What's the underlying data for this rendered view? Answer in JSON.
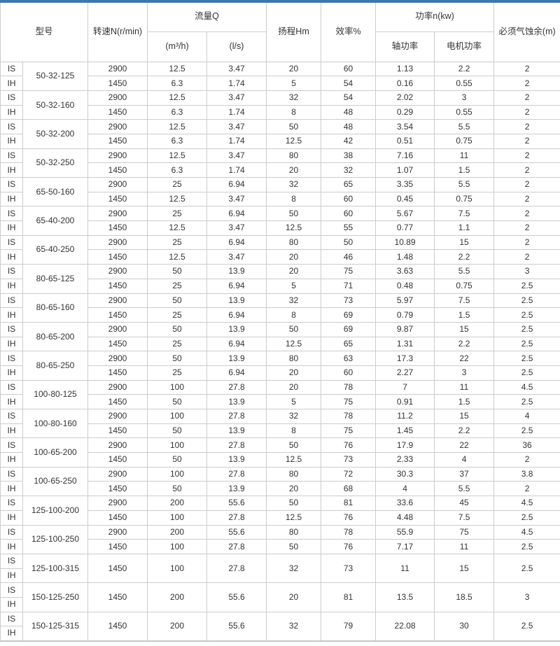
{
  "accent_color": "#3a78b4",
  "border_color": "#cccccc",
  "table": {
    "header": {
      "model": "型号",
      "speed": "转速N(r/min)",
      "flow": "流量Q",
      "flow_m3h": "(m³/h)",
      "flow_ls": "(l/s)",
      "head": "扬程Hm",
      "efficiency": "效率%",
      "power": "功率n(kw)",
      "shaft_power": "轴功率",
      "motor_power": "电机功率",
      "npsh": "必须气蚀余(m)"
    },
    "groups": [
      {
        "model": "50-32-125",
        "merged": false,
        "rows": [
          {
            "series": "IS",
            "speed": "2900",
            "flow_m3h": "12.5",
            "flow_ls": "3.47",
            "head": "20",
            "efficiency": "60",
            "shaft_power": "1.13",
            "motor_power": "2.2",
            "npsh": "2"
          },
          {
            "series": "IH",
            "speed": "1450",
            "flow_m3h": "6.3",
            "flow_ls": "1.74",
            "head": "5",
            "efficiency": "54",
            "shaft_power": "0.16",
            "motor_power": "0.55",
            "npsh": "2"
          }
        ]
      },
      {
        "model": "50-32-160",
        "merged": false,
        "rows": [
          {
            "series": "IS",
            "speed": "2900",
            "flow_m3h": "12.5",
            "flow_ls": "3.47",
            "head": "32",
            "efficiency": "54",
            "shaft_power": "2.02",
            "motor_power": "3",
            "npsh": "2"
          },
          {
            "series": "IH",
            "speed": "1450",
            "flow_m3h": "6.3",
            "flow_ls": "1.74",
            "head": "8",
            "efficiency": "48",
            "shaft_power": "0.29",
            "motor_power": "0.55",
            "npsh": "2"
          }
        ]
      },
      {
        "model": "50-32-200",
        "merged": false,
        "rows": [
          {
            "series": "IS",
            "speed": "2900",
            "flow_m3h": "12.5",
            "flow_ls": "3.47",
            "head": "50",
            "efficiency": "48",
            "shaft_power": "3.54",
            "motor_power": "5.5",
            "npsh": "2"
          },
          {
            "series": "IH",
            "speed": "1450",
            "flow_m3h": "6.3",
            "flow_ls": "1.74",
            "head": "12.5",
            "efficiency": "42",
            "shaft_power": "0.51",
            "motor_power": "0.75",
            "npsh": "2"
          }
        ]
      },
      {
        "model": "50-32-250",
        "merged": false,
        "rows": [
          {
            "series": "IS",
            "speed": "2900",
            "flow_m3h": "12.5",
            "flow_ls": "3.47",
            "head": "80",
            "efficiency": "38",
            "shaft_power": "7.16",
            "motor_power": "11",
            "npsh": "2"
          },
          {
            "series": "IH",
            "speed": "1450",
            "flow_m3h": "6.3",
            "flow_ls": "1.74",
            "head": "20",
            "efficiency": "32",
            "shaft_power": "1.07",
            "motor_power": "1.5",
            "npsh": "2"
          }
        ]
      },
      {
        "model": "65-50-160",
        "merged": false,
        "rows": [
          {
            "series": "IS",
            "speed": "2900",
            "flow_m3h": "25",
            "flow_ls": "6.94",
            "head": "32",
            "efficiency": "65",
            "shaft_power": "3.35",
            "motor_power": "5.5",
            "npsh": "2"
          },
          {
            "series": "IH",
            "speed": "1450",
            "flow_m3h": "12.5",
            "flow_ls": "3.47",
            "head": "8",
            "efficiency": "60",
            "shaft_power": "0.45",
            "motor_power": "0.75",
            "npsh": "2"
          }
        ]
      },
      {
        "model": "65-40-200",
        "merged": false,
        "rows": [
          {
            "series": "IS",
            "speed": "2900",
            "flow_m3h": "25",
            "flow_ls": "6.94",
            "head": "50",
            "efficiency": "60",
            "shaft_power": "5.67",
            "motor_power": "7.5",
            "npsh": "2"
          },
          {
            "series": "IH",
            "speed": "1450",
            "flow_m3h": "12.5",
            "flow_ls": "3.47",
            "head": "12.5",
            "efficiency": "55",
            "shaft_power": "0.77",
            "motor_power": "1.1",
            "npsh": "2"
          }
        ]
      },
      {
        "model": "65-40-250",
        "merged": false,
        "rows": [
          {
            "series": "IS",
            "speed": "2900",
            "flow_m3h": "25",
            "flow_ls": "6.94",
            "head": "80",
            "efficiency": "50",
            "shaft_power": "10.89",
            "motor_power": "15",
            "npsh": "2"
          },
          {
            "series": "IH",
            "speed": "1450",
            "flow_m3h": "12.5",
            "flow_ls": "3.47",
            "head": "20",
            "efficiency": "46",
            "shaft_power": "1.48",
            "motor_power": "2.2",
            "npsh": "2"
          }
        ]
      },
      {
        "model": "80-65-125",
        "merged": false,
        "rows": [
          {
            "series": "IS",
            "speed": "2900",
            "flow_m3h": "50",
            "flow_ls": "13.9",
            "head": "20",
            "efficiency": "75",
            "shaft_power": "3.63",
            "motor_power": "5.5",
            "npsh": "3"
          },
          {
            "series": "IH",
            "speed": "1450",
            "flow_m3h": "25",
            "flow_ls": "6.94",
            "head": "5",
            "efficiency": "71",
            "shaft_power": "0.48",
            "motor_power": "0.75",
            "npsh": "2.5"
          }
        ]
      },
      {
        "model": "80-65-160",
        "merged": false,
        "rows": [
          {
            "series": "IS",
            "speed": "2900",
            "flow_m3h": "50",
            "flow_ls": "13.9",
            "head": "32",
            "efficiency": "73",
            "shaft_power": "5.97",
            "motor_power": "7.5",
            "npsh": "2.5"
          },
          {
            "series": "IH",
            "speed": "1450",
            "flow_m3h": "25",
            "flow_ls": "6.94",
            "head": "8",
            "efficiency": "69",
            "shaft_power": "0.79",
            "motor_power": "1.5",
            "npsh": "2.5"
          }
        ]
      },
      {
        "model": "80-65-200",
        "merged": false,
        "rows": [
          {
            "series": "IS",
            "speed": "2900",
            "flow_m3h": "50",
            "flow_ls": "13.9",
            "head": "50",
            "efficiency": "69",
            "shaft_power": "9.87",
            "motor_power": "15",
            "npsh": "2.5"
          },
          {
            "series": "IH",
            "speed": "1450",
            "flow_m3h": "25",
            "flow_ls": "6.94",
            "head": "12.5",
            "efficiency": "65",
            "shaft_power": "1.31",
            "motor_power": "2.2",
            "npsh": "2.5"
          }
        ]
      },
      {
        "model": "80-65-250",
        "merged": false,
        "rows": [
          {
            "series": "IS",
            "speed": "2900",
            "flow_m3h": "50",
            "flow_ls": "13.9",
            "head": "80",
            "efficiency": "63",
            "shaft_power": "17.3",
            "motor_power": "22",
            "npsh": "2.5"
          },
          {
            "series": "IH",
            "speed": "1450",
            "flow_m3h": "25",
            "flow_ls": "6.94",
            "head": "20",
            "efficiency": "60",
            "shaft_power": "2.27",
            "motor_power": "3",
            "npsh": "2.5"
          }
        ]
      },
      {
        "model": "100-80-125",
        "merged": false,
        "rows": [
          {
            "series": "IS",
            "speed": "2900",
            "flow_m3h": "100",
            "flow_ls": "27.8",
            "head": "20",
            "efficiency": "78",
            "shaft_power": "7",
            "motor_power": "11",
            "npsh": "4.5"
          },
          {
            "series": "IH",
            "speed": "1450",
            "flow_m3h": "50",
            "flow_ls": "13.9",
            "head": "5",
            "efficiency": "75",
            "shaft_power": "0.91",
            "motor_power": "1.5",
            "npsh": "2.5"
          }
        ]
      },
      {
        "model": "100-80-160",
        "merged": false,
        "rows": [
          {
            "series": "IS",
            "speed": "2900",
            "flow_m3h": "100",
            "flow_ls": "27.8",
            "head": "32",
            "efficiency": "78",
            "shaft_power": "11.2",
            "motor_power": "15",
            "npsh": "4"
          },
          {
            "series": "IH",
            "speed": "1450",
            "flow_m3h": "50",
            "flow_ls": "13.9",
            "head": "8",
            "efficiency": "75",
            "shaft_power": "1.45",
            "motor_power": "2.2",
            "npsh": "2.5"
          }
        ]
      },
      {
        "model": "100-65-200",
        "merged": false,
        "rows": [
          {
            "series": "IS",
            "speed": "2900",
            "flow_m3h": "100",
            "flow_ls": "27.8",
            "head": "50",
            "efficiency": "76",
            "shaft_power": "17.9",
            "motor_power": "22",
            "npsh": "36"
          },
          {
            "series": "IH",
            "speed": "1450",
            "flow_m3h": "50",
            "flow_ls": "13.9",
            "head": "12.5",
            "efficiency": "73",
            "shaft_power": "2.33",
            "motor_power": "4",
            "npsh": "2"
          }
        ]
      },
      {
        "model": "100-65-250",
        "merged": false,
        "rows": [
          {
            "series": "IS",
            "speed": "2900",
            "flow_m3h": "100",
            "flow_ls": "27.8",
            "head": "80",
            "efficiency": "72",
            "shaft_power": "30.3",
            "motor_power": "37",
            "npsh": "3.8"
          },
          {
            "series": "IH",
            "speed": "1450",
            "flow_m3h": "50",
            "flow_ls": "13.9",
            "head": "20",
            "efficiency": "68",
            "shaft_power": "4",
            "motor_power": "5.5",
            "npsh": "2"
          }
        ]
      },
      {
        "model": "125-100-200",
        "merged": false,
        "rows": [
          {
            "series": "IS",
            "speed": "2900",
            "flow_m3h": "200",
            "flow_ls": "55.6",
            "head": "50",
            "efficiency": "81",
            "shaft_power": "33.6",
            "motor_power": "45",
            "npsh": "4.5"
          },
          {
            "series": "IH",
            "speed": "1450",
            "flow_m3h": "100",
            "flow_ls": "27.8",
            "head": "12.5",
            "efficiency": "76",
            "shaft_power": "4.48",
            "motor_power": "7.5",
            "npsh": "2.5"
          }
        ]
      },
      {
        "model": "125-100-250",
        "merged": false,
        "rows": [
          {
            "series": "IS",
            "speed": "2900",
            "flow_m3h": "200",
            "flow_ls": "55.6",
            "head": "80",
            "efficiency": "78",
            "shaft_power": "55.9",
            "motor_power": "75",
            "npsh": "4.5"
          },
          {
            "series": "IH",
            "speed": "1450",
            "flow_m3h": "100",
            "flow_ls": "27.8",
            "head": "50",
            "efficiency": "76",
            "shaft_power": "7.17",
            "motor_power": "11",
            "npsh": "2.5"
          }
        ]
      },
      {
        "model": "125-100-315",
        "merged": true,
        "series": [
          "IS",
          "IH"
        ],
        "row": {
          "speed": "1450",
          "flow_m3h": "100",
          "flow_ls": "27.8",
          "head": "32",
          "efficiency": "73",
          "shaft_power": "11",
          "motor_power": "15",
          "npsh": "2.5"
        }
      },
      {
        "model": "150-125-250",
        "merged": true,
        "series": [
          "IS",
          "IH"
        ],
        "row": {
          "speed": "1450",
          "flow_m3h": "200",
          "flow_ls": "55.6",
          "head": "20",
          "efficiency": "81",
          "shaft_power": "13.5",
          "motor_power": "18.5",
          "npsh": "3"
        }
      },
      {
        "model": "150-125-315",
        "merged": true,
        "series": [
          "IS",
          "IH"
        ],
        "row": {
          "speed": "1450",
          "flow_m3h": "200",
          "flow_ls": "55.6",
          "head": "32",
          "efficiency": "79",
          "shaft_power": "22.08",
          "motor_power": "30",
          "npsh": "2.5"
        }
      }
    ]
  }
}
